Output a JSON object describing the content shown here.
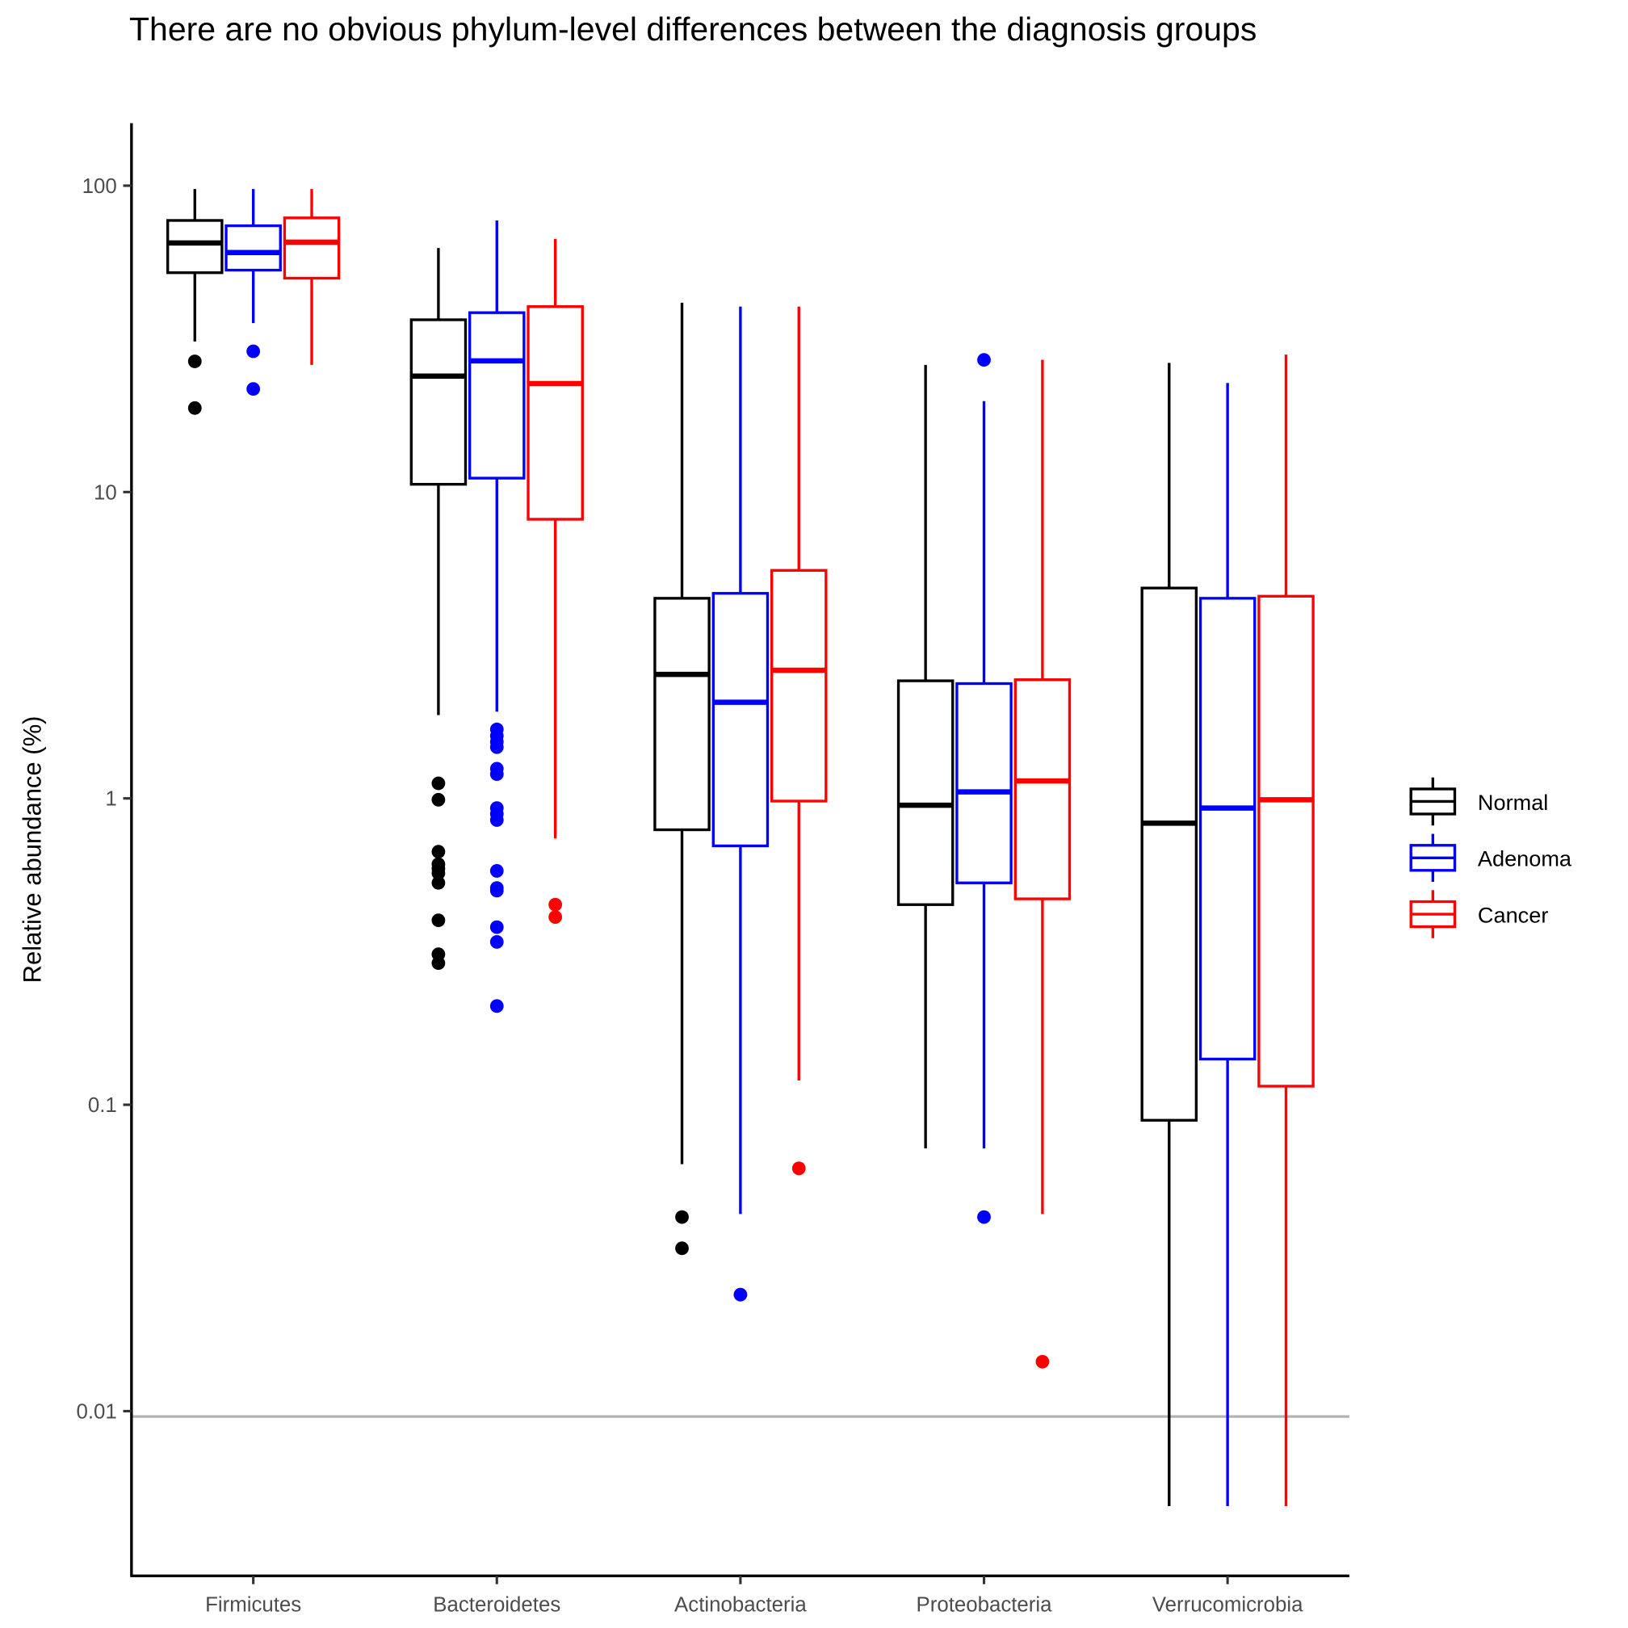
{
  "chart_data": {
    "type": "box",
    "title": "There are no obvious phylum-level differences between the diagnosis groups",
    "xlabel": "",
    "ylabel": "Relative abundance (%)",
    "yscale": "log10",
    "ylim": [
      0.0029,
      160
    ],
    "yticks": [
      100,
      10,
      1,
      0.1,
      0.01
    ],
    "ytick_labels": [
      "100",
      "10",
      "1",
      "0.1",
      "0.01"
    ],
    "grid": false,
    "reference_line": {
      "value": 0.0096,
      "color": "#b3b3b3"
    },
    "legend_position": "right",
    "categories": [
      "Firmicutes",
      "Bacteroidetes",
      "Actinobacteria",
      "Proteobacteria",
      "Verrucomicrobia"
    ],
    "series": [
      {
        "name": "Normal",
        "color": "#000000",
        "boxes": [
          {
            "low": 31,
            "q1": 52,
            "median": 65,
            "q3": 77,
            "high": 97.5,
            "outliers": [
              26.7,
              18.8
            ]
          },
          {
            "low": 1.87,
            "q1": 10.6,
            "median": 23.9,
            "q3": 36.5,
            "high": 62.6,
            "outliers": [
              1.12,
              0.99,
              0.67,
              0.61,
              0.59,
              0.57,
              0.53,
              0.4,
              0.31,
              0.29
            ]
          },
          {
            "low": 0.064,
            "q1": 0.79,
            "median": 2.54,
            "q3": 4.5,
            "high": 41.5,
            "outliers": [
              0.043,
              0.034
            ]
          },
          {
            "low": 0.072,
            "q1": 0.45,
            "median": 0.95,
            "q3": 2.42,
            "high": 26,
            "outliers": []
          },
          {
            "low": 0.0049,
            "q1": 0.089,
            "median": 0.83,
            "q3": 4.86,
            "high": 26.4,
            "outliers": []
          }
        ]
      },
      {
        "name": "Adenoma",
        "color": "#0000ff",
        "boxes": [
          {
            "low": 35.6,
            "q1": 53,
            "median": 60.5,
            "q3": 74,
            "high": 97.5,
            "outliers": [
              28.8,
              21.7
            ]
          },
          {
            "low": 1.92,
            "q1": 11.1,
            "median": 26.8,
            "q3": 38.5,
            "high": 77,
            "outliers": [
              1.68,
              1.6,
              1.53,
              1.47,
              1.25,
              1.2,
              0.93,
              0.89,
              0.85,
              0.58,
              0.51,
              0.5,
              0.38,
              0.34,
              0.21
            ]
          },
          {
            "low": 0.044,
            "q1": 0.7,
            "median": 2.06,
            "q3": 4.67,
            "high": 40.3,
            "outliers": [
              0.024
            ]
          },
          {
            "low": 0.072,
            "q1": 0.53,
            "median": 1.05,
            "q3": 2.37,
            "high": 19.8,
            "outliers": [
              27,
              0.043
            ]
          },
          {
            "low": 0.0049,
            "q1": 0.141,
            "median": 0.93,
            "q3": 4.5,
            "high": 22.7,
            "outliers": []
          }
        ]
      },
      {
        "name": "Cancer",
        "color": "#ff0000",
        "boxes": [
          {
            "low": 26,
            "q1": 49.9,
            "median": 65.4,
            "q3": 78.5,
            "high": 97.5,
            "outliers": []
          },
          {
            "low": 0.74,
            "q1": 8.15,
            "median": 22.6,
            "q3": 40.3,
            "high": 67,
            "outliers": [
              0.45,
              0.41
            ]
          },
          {
            "low": 0.12,
            "q1": 0.98,
            "median": 2.62,
            "q3": 5.55,
            "high": 40.3,
            "outliers": [
              0.062
            ]
          },
          {
            "low": 0.044,
            "q1": 0.47,
            "median": 1.14,
            "q3": 2.44,
            "high": 27,
            "outliers": [
              0.0145
            ]
          },
          {
            "low": 0.0049,
            "q1": 0.115,
            "median": 0.99,
            "q3": 4.57,
            "high": 28.1,
            "outliers": []
          }
        ]
      }
    ]
  }
}
